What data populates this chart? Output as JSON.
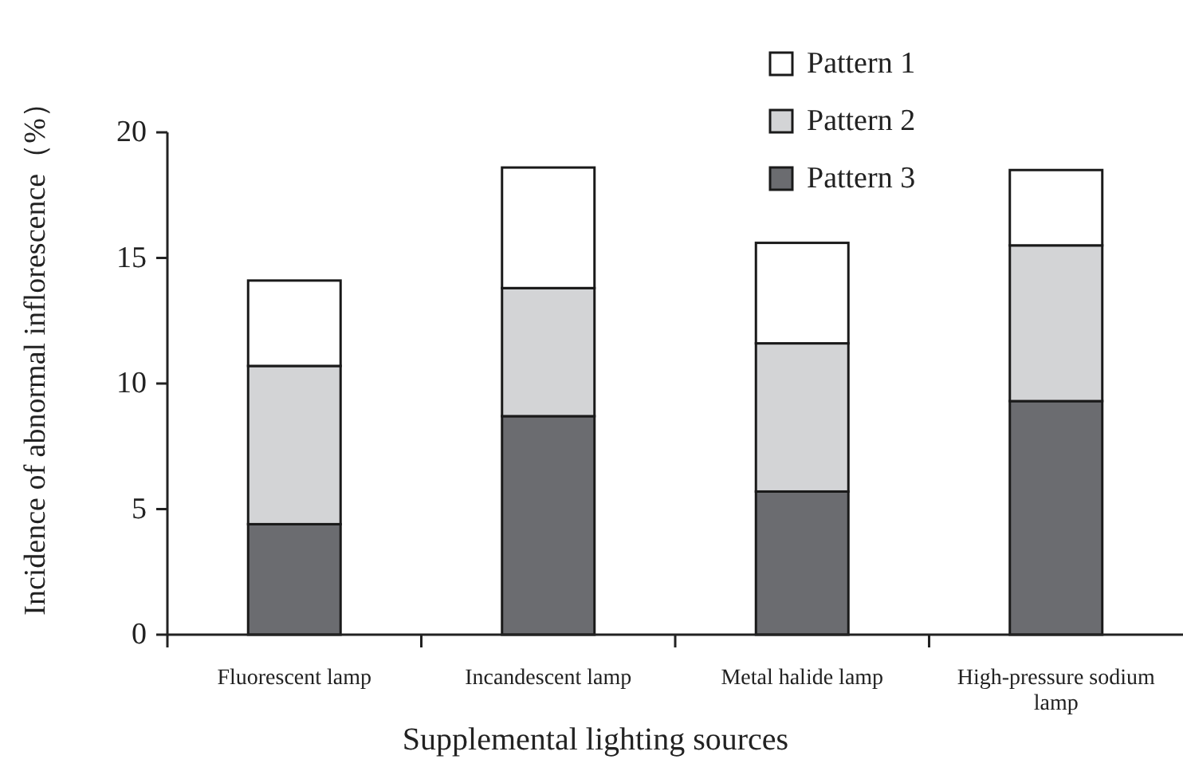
{
  "chart_data": {
    "type": "bar",
    "stacked": true,
    "xlabel": "Supplemental lighting sources",
    "ylabel": "Incidence of abnormal inflorescence（%）",
    "categories": [
      "Fluorescent lamp",
      "Incandescent lamp",
      "Metal halide lamp",
      "High-pressure sodium lamp"
    ],
    "series": [
      {
        "name": "Pattern 3",
        "color": "#6b6c70",
        "values": [
          4.4,
          8.7,
          5.7,
          9.3
        ]
      },
      {
        "name": "Pattern 2",
        "color": "#d3d4d6",
        "values": [
          6.3,
          5.1,
          5.9,
          6.2
        ]
      },
      {
        "name": "Pattern 1",
        "color": "#ffffff",
        "values": [
          3.4,
          4.8,
          4.0,
          3.0
        ]
      }
    ],
    "ylim": [
      0,
      20
    ],
    "yticks": [
      0,
      5,
      10,
      15,
      20
    ],
    "grid": false,
    "legend": "top right"
  }
}
